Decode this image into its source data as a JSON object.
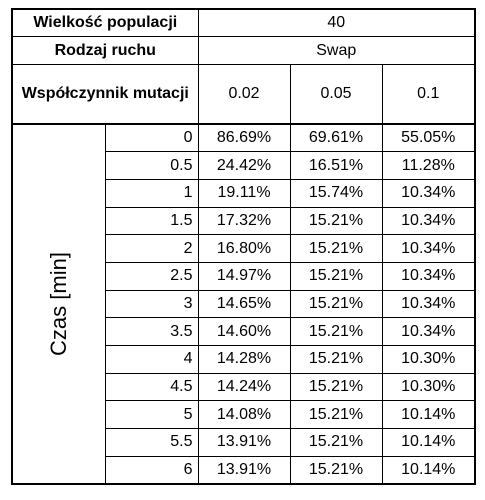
{
  "header": {
    "population_label": "Wielkość populacji",
    "population_value": "40",
    "move_label": "Rodzaj ruchu",
    "move_value": "Swap",
    "mutation_label": "Współczynnik mutacji",
    "mutation_rates": [
      "0.02",
      "0.05",
      "0.1"
    ]
  },
  "time_axis_label": "Czas [min]",
  "rows": [
    {
      "t": "0",
      "v": [
        "86.69%",
        "69.61%",
        "55.05%"
      ]
    },
    {
      "t": "0.5",
      "v": [
        "24.42%",
        "16.51%",
        "11.28%"
      ]
    },
    {
      "t": "1",
      "v": [
        "19.11%",
        "15.74%",
        "10.34%"
      ]
    },
    {
      "t": "1.5",
      "v": [
        "17.32%",
        "15.21%",
        "10.34%"
      ]
    },
    {
      "t": "2",
      "v": [
        "16.80%",
        "15.21%",
        "10.34%"
      ]
    },
    {
      "t": "2.5",
      "v": [
        "14.97%",
        "15.21%",
        "10.34%"
      ]
    },
    {
      "t": "3",
      "v": [
        "14.65%",
        "15.21%",
        "10.34%"
      ]
    },
    {
      "t": "3.5",
      "v": [
        "14.60%",
        "15.21%",
        "10.34%"
      ]
    },
    {
      "t": "4",
      "v": [
        "14.28%",
        "15.21%",
        "10.30%"
      ]
    },
    {
      "t": "4.5",
      "v": [
        "14.24%",
        "15.21%",
        "10.30%"
      ]
    },
    {
      "t": "5",
      "v": [
        "14.08%",
        "15.21%",
        "10.14%"
      ]
    },
    {
      "t": "5.5",
      "v": [
        "13.91%",
        "15.21%",
        "10.14%"
      ]
    },
    {
      "t": "6",
      "v": [
        "13.91%",
        "15.21%",
        "10.14%"
      ]
    }
  ]
}
